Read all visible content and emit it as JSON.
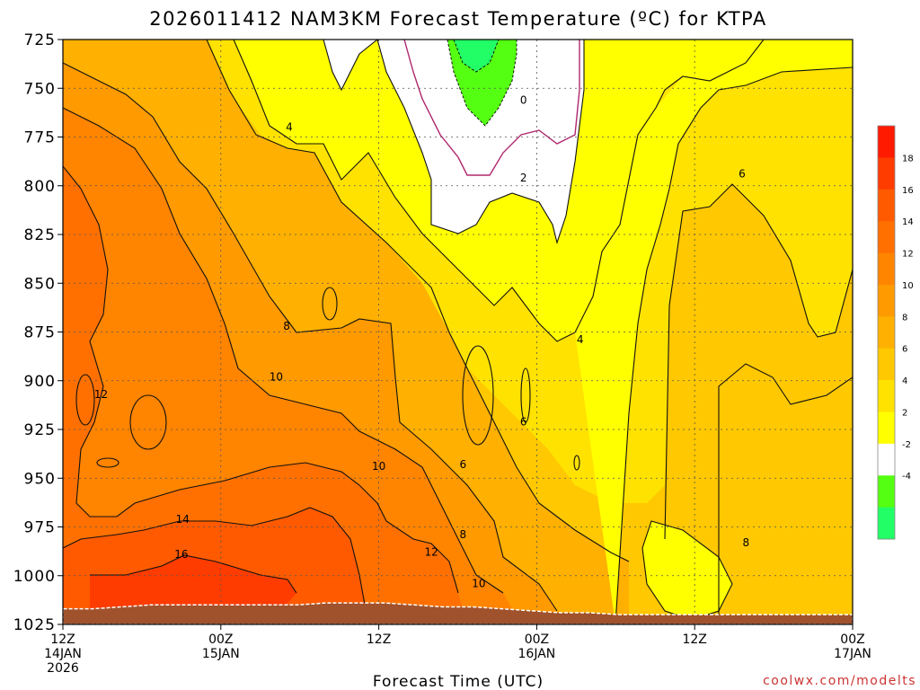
{
  "chart_data": {
    "type": "heatmap",
    "title": "2026011412 NAM3KM Forecast Temperature (ºC) for KTPA",
    "xlabel": "Forecast Time (UTC)",
    "ylabel": "",
    "y_ticks": [
      725,
      750,
      775,
      800,
      825,
      850,
      875,
      900,
      925,
      950,
      975,
      1000,
      1025
    ],
    "ylim": [
      725,
      1025
    ],
    "y_scale": "pressure (hPa), increasing downward",
    "x_ticks": [
      {
        "hour": 0,
        "line1": "12Z",
        "line2": "14JAN",
        "line3": "2026"
      },
      {
        "hour": 12,
        "line1": "00Z",
        "line2": "15JAN",
        "line3": ""
      },
      {
        "hour": 24,
        "line1": "12Z",
        "line2": "",
        "line3": ""
      },
      {
        "hour": 36,
        "line1": "00Z",
        "line2": "16JAN",
        "line3": ""
      },
      {
        "hour": 48,
        "line1": "12Z",
        "line2": "",
        "line3": ""
      },
      {
        "hour": 60,
        "line1": "00Z",
        "line2": "17JAN",
        "line3": ""
      }
    ],
    "xlim_hours": [
      0,
      60
    ],
    "grid": true,
    "colorbar": {
      "position": "right",
      "labels": [
        18,
        16,
        14,
        12,
        10,
        8,
        6,
        4,
        2,
        -2,
        -4
      ],
      "colors": [
        "#ff1a00",
        "#ff3c00",
        "#ff5a00",
        "#ff7000",
        "#ff8400",
        "#ff9a00",
        "#ffb000",
        "#ffc800",
        "#ffe200",
        "#ffff00",
        "#ffffff",
        "#55ff11",
        "#22ff66"
      ]
    },
    "contour_labels": [
      {
        "text": "0",
        "hour": 35.0,
        "hpa": 756
      },
      {
        "text": "2",
        "hour": 35.0,
        "hpa": 796
      },
      {
        "text": "4",
        "hour": 17.2,
        "hpa": 770
      },
      {
        "text": "4",
        "hour": 39.3,
        "hpa": 879
      },
      {
        "text": "6",
        "hour": 51.6,
        "hpa": 794
      },
      {
        "text": "6",
        "hour": 30.4,
        "hpa": 943
      },
      {
        "text": "6",
        "hour": 35.0,
        "hpa": 921
      },
      {
        "text": "8",
        "hour": 17.0,
        "hpa": 872
      },
      {
        "text": "8",
        "hour": 30.4,
        "hpa": 979
      },
      {
        "text": "8",
        "hour": 51.9,
        "hpa": 983
      },
      {
        "text": "10",
        "hour": 16.2,
        "hpa": 898
      },
      {
        "text": "10",
        "hour": 24.0,
        "hpa": 944
      },
      {
        "text": "10",
        "hour": 31.6,
        "hpa": 1004
      },
      {
        "text": "12",
        "hour": 2.9,
        "hpa": 907
      },
      {
        "text": "12",
        "hour": 28.0,
        "hpa": 988
      },
      {
        "text": "14",
        "hour": 9.1,
        "hpa": 971
      },
      {
        "text": "16",
        "hour": 9.0,
        "hpa": 989
      }
    ],
    "surface_hpa": [
      1017,
      1017,
      1016,
      1015,
      1015,
      1015,
      1015,
      1015,
      1015,
      1014,
      1014,
      1014,
      1015,
      1016,
      1016,
      1017,
      1018,
      1019,
      1019,
      1020,
      1020,
      1020,
      1020,
      1020,
      1020,
      1020,
      1020,
      1020
    ],
    "credit": "coolwx.com/modelts"
  }
}
